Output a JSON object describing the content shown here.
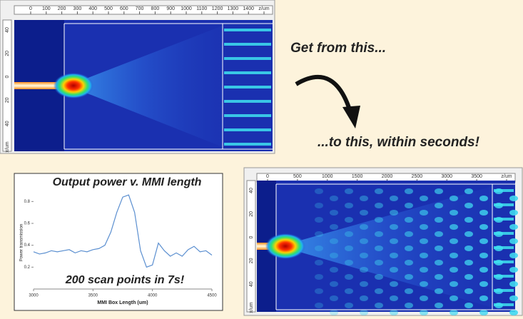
{
  "heading_from": "Get from this...",
  "heading_to": "...to this, within seconds!",
  "screens": [
    {
      "top_ruler": [
        "0",
        "100",
        "200",
        "300",
        "400",
        "500",
        "600",
        "700",
        "800",
        "900",
        "1000",
        "1100",
        "1200",
        "1300",
        "1400",
        "z/um"
      ],
      "left_ruler": [
        "40",
        "20",
        "0",
        "20",
        "40",
        "x/um"
      ]
    },
    {
      "top_ruler": [
        "0",
        "500",
        "1000",
        "1500",
        "2000",
        "2500",
        "3000",
        "3500",
        "z/um"
      ],
      "left_ruler": [
        "40",
        "20",
        "0",
        "20",
        "40",
        "x/um"
      ]
    }
  ],
  "chart_data": {
    "type": "line",
    "title": "Output power v. MMI length",
    "annotation": "200 scan points in 7s!",
    "x_label": "MMI Box Length (um)",
    "y_label": "Power transmission",
    "x": [
      3000,
      3050,
      3100,
      3150,
      3200,
      3250,
      3300,
      3350,
      3400,
      3450,
      3500,
      3550,
      3600,
      3650,
      3700,
      3750,
      3800,
      3850,
      3900,
      3950,
      4000,
      4050,
      4100,
      4150,
      4200,
      4250,
      4300,
      4350,
      4400,
      4450,
      4500
    ],
    "series": [
      {
        "color": "#5b8fd0",
        "values": [
          0.34,
          0.32,
          0.33,
          0.35,
          0.34,
          0.35,
          0.36,
          0.33,
          0.35,
          0.34,
          0.36,
          0.37,
          0.4,
          0.52,
          0.7,
          0.84,
          0.86,
          0.7,
          0.35,
          0.2,
          0.22,
          0.42,
          0.35,
          0.3,
          0.33,
          0.3,
          0.36,
          0.39,
          0.34,
          0.35,
          0.31
        ]
      }
    ],
    "xlim": [
      3000,
      4500
    ],
    "ylim": [
      0,
      0.9
    ],
    "xticks": [
      3000,
      3500,
      4000,
      4500
    ],
    "yticks": [
      0.2,
      0.4,
      0.6,
      0.8
    ]
  }
}
